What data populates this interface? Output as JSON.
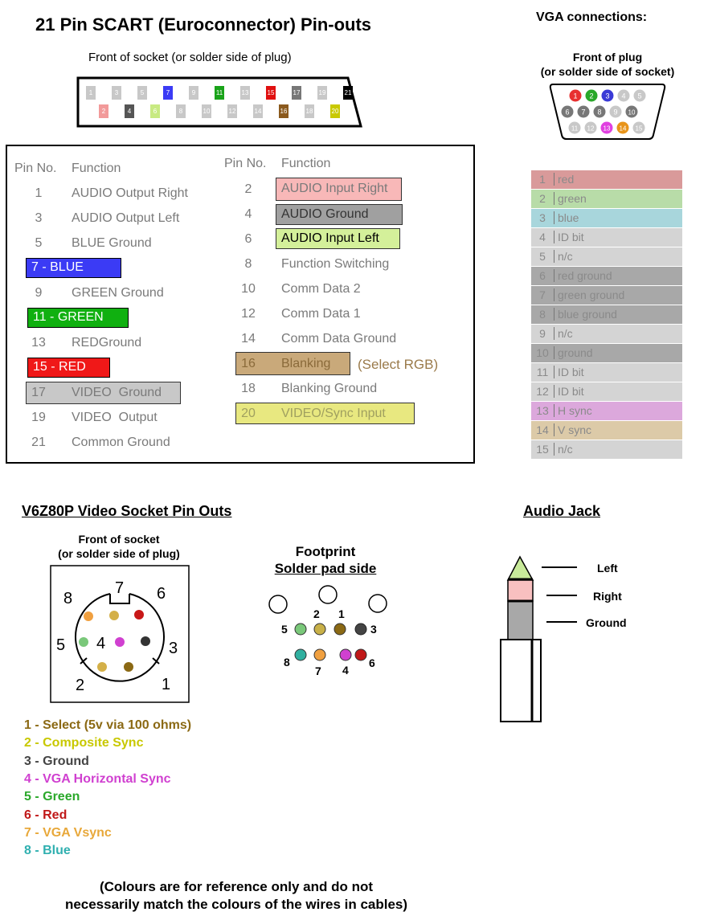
{
  "scart": {
    "title": "21 Pin SCART (Euroconnector) Pin-outs",
    "socket_caption": "Front of socket (or solder side of plug)",
    "connector_top": [
      {
        "n": "1",
        "c": "#c8c8c8"
      },
      {
        "n": "3",
        "c": "#c8c8c8"
      },
      {
        "n": "5",
        "c": "#c8c8c8"
      },
      {
        "n": "7",
        "c": "#3b3bf5"
      },
      {
        "n": "9",
        "c": "#c8c8c8"
      },
      {
        "n": "11",
        "c": "#1aa31a"
      },
      {
        "n": "13",
        "c": "#c8c8c8"
      },
      {
        "n": "15",
        "c": "#e01010"
      },
      {
        "n": "17",
        "c": "#777777"
      },
      {
        "n": "19",
        "c": "#c8c8c8"
      },
      {
        "n": "21",
        "c": "#000000"
      }
    ],
    "connector_bottom": [
      {
        "n": "2",
        "c": "#f29a9a"
      },
      {
        "n": "4",
        "c": "#555555"
      },
      {
        "n": "6",
        "c": "#c8ea82"
      },
      {
        "n": "8",
        "c": "#c8c8c8"
      },
      {
        "n": "10",
        "c": "#c8c8c8"
      },
      {
        "n": "12",
        "c": "#c8c8c8"
      },
      {
        "n": "14",
        "c": "#c8c8c8"
      },
      {
        "n": "16",
        "c": "#8b5a1e"
      },
      {
        "n": "18",
        "c": "#c8c8c8"
      },
      {
        "n": "20",
        "c": "#c9c900"
      }
    ],
    "header_pin": "Pin No.",
    "header_function": "Function",
    "left": {
      "p1": {
        "n": "1",
        "f": "AUDIO Output Right"
      },
      "p3": {
        "n": "3",
        "f": "AUDIO Output Left"
      },
      "p5": {
        "n": "5",
        "f": "BLUE Ground"
      },
      "p7": "7 - BLUE",
      "p9": {
        "n": "9",
        "f": "GREEN Ground"
      },
      "p11": "11 - GREEN",
      "p13": {
        "n": "13",
        "f": "REDGround"
      },
      "p15": "15 - RED",
      "p17": {
        "n": "17",
        "f": "VIDEO  Ground"
      },
      "p19": {
        "n": "19",
        "f": "VIDEO  Output"
      },
      "p21": {
        "n": "21",
        "f": "Common Ground"
      }
    },
    "right": {
      "p2": {
        "n": "2",
        "f": "AUDIO Input Right"
      },
      "p4": {
        "n": "4",
        "f": "AUDIO Ground"
      },
      "p6": {
        "n": "6",
        "f": "AUDIO Input Left"
      },
      "p8": {
        "n": "8",
        "f": "Function Switching"
      },
      "p10": {
        "n": "10",
        "f": "Comm Data 2"
      },
      "p12": {
        "n": "12",
        "f": "Comm Data 1"
      },
      "p14": {
        "n": "14",
        "f": "Comm Data Ground"
      },
      "p16": {
        "n": "16",
        "f": "Blanking"
      },
      "p16_note": "(Select RGB)",
      "p18": {
        "n": "18",
        "f": "Blanking Ground"
      },
      "p20": {
        "n": "20",
        "f": "VIDEO/Sync Input"
      }
    }
  },
  "vga": {
    "title": "VGA connections:",
    "caption_line1": "Front of plug",
    "caption_line2": "(or solder side of socket)",
    "connector_row1": [
      {
        "n": "1",
        "c": "#e83030"
      },
      {
        "n": "2",
        "c": "#2aa82a"
      },
      {
        "n": "3",
        "c": "#3a3ad6"
      },
      {
        "n": "4",
        "c": "#c8c8c8"
      },
      {
        "n": "5",
        "c": "#c8c8c8"
      }
    ],
    "connector_row2": [
      {
        "n": "6",
        "c": "#777777"
      },
      {
        "n": "7",
        "c": "#777777"
      },
      {
        "n": "8",
        "c": "#777777"
      },
      {
        "n": "9",
        "c": "#c8c8c8"
      },
      {
        "n": "10",
        "c": "#777777"
      }
    ],
    "connector_row3": [
      {
        "n": "11",
        "c": "#c8c8c8"
      },
      {
        "n": "12",
        "c": "#c8c8c8"
      },
      {
        "n": "13",
        "c": "#e040e0"
      },
      {
        "n": "14",
        "c": "#e8941a"
      },
      {
        "n": "15",
        "c": "#c8c8c8"
      }
    ],
    "rows": [
      {
        "n": "1",
        "f": "red",
        "bg": "#d99a9a"
      },
      {
        "n": "2",
        "f": "green",
        "bg": "#b8dca8"
      },
      {
        "n": "3",
        "f": "blue",
        "bg": "#a8d6dc"
      },
      {
        "n": "4",
        "f": "ID bit",
        "bg": "#d4d4d4"
      },
      {
        "n": "5",
        "f": "n/c",
        "bg": "#d4d4d4"
      },
      {
        "n": "6",
        "f": "red ground",
        "bg": "#a8a8a8"
      },
      {
        "n": "7",
        "f": "green ground",
        "bg": "#a8a8a8"
      },
      {
        "n": "8",
        "f": "blue ground",
        "bg": "#a8a8a8"
      },
      {
        "n": "9",
        "f": "n/c",
        "bg": "#d4d4d4"
      },
      {
        "n": "10",
        "f": "ground",
        "bg": "#a8a8a8"
      },
      {
        "n": "11",
        "f": "ID bit",
        "bg": "#d4d4d4"
      },
      {
        "n": "12",
        "f": "ID bit",
        "bg": "#d4d4d4"
      },
      {
        "n": "13",
        "f": "H sync",
        "bg": "#dca8dc"
      },
      {
        "n": "14",
        "f": "V sync",
        "bg": "#dccaa8"
      },
      {
        "n": "15",
        "f": "n/c",
        "bg": "#d4d4d4"
      }
    ]
  },
  "v6z80p": {
    "title": "V6Z80P Video Socket Pin Outs",
    "caption_line1": "Front of socket",
    "caption_line2": "(or solder side of plug)",
    "socket_numbers": [
      "1",
      "2",
      "3",
      "4",
      "5",
      "6",
      "7",
      "8"
    ],
    "footprint_title_line1": "Footprint",
    "footprint_title_line2": "Solder pad side",
    "footprint_numbers": [
      "1",
      "2",
      "3",
      "4",
      "5",
      "6",
      "7",
      "8"
    ],
    "legend": [
      {
        "text": "1 - Select (5v via 100 ohms)",
        "color": "#8b6914"
      },
      {
        "text": "2 - Composite Sync",
        "color": "#c8c800"
      },
      {
        "text": "3 - Ground",
        "color": "#444444"
      },
      {
        "text": "4 - VGA Horizontal Sync",
        "color": "#d040d0"
      },
      {
        "text": "5 - Green",
        "color": "#2aa82a"
      },
      {
        "text": "6 - Red",
        "color": "#c01818"
      },
      {
        "text": "7 - VGA Vsync",
        "color": "#e8a83a"
      },
      {
        "text": "8 - Blue",
        "color": "#30b0b0"
      }
    ],
    "note_line1": "(Colours are for reference only and do not",
    "note_line2": "necessarily match the colours of the wires in cables)"
  },
  "audio_jack": {
    "title": "Audio Jack",
    "left": "Left",
    "right": "Right",
    "ground": "Ground"
  }
}
